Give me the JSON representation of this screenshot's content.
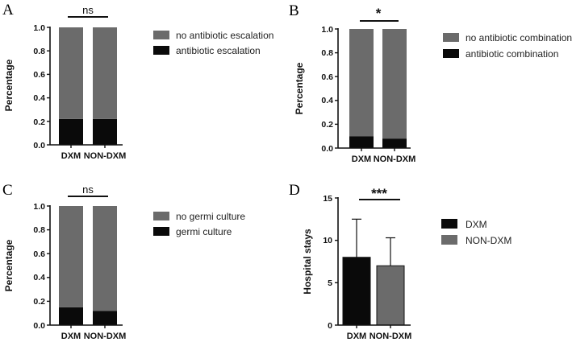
{
  "colors": {
    "dark": "#0a0a0a",
    "gray": "#6b6b6b",
    "axis": "#111111"
  },
  "chart_data": [
    {
      "panel": "A",
      "type": "bar",
      "stacked": true,
      "categories": [
        "DXM",
        "NON-DXM"
      ],
      "series": [
        {
          "name": "antibiotic escalation",
          "values": [
            0.22,
            0.22
          ]
        },
        {
          "name": "no antibiotic escalation",
          "values": [
            0.78,
            0.78
          ]
        }
      ],
      "legend": [
        "no antibiotic escalation",
        "antibiotic escalation"
      ],
      "ylabel": "Percentage",
      "ylim": [
        0,
        1.0
      ],
      "yticks": [
        "0.0",
        "0.2",
        "0.4",
        "0.6",
        "0.8",
        "1.0"
      ],
      "significance": "ns"
    },
    {
      "panel": "B",
      "type": "bar",
      "stacked": true,
      "categories": [
        "DXM",
        "NON-DXM"
      ],
      "series": [
        {
          "name": "antibiotic combination",
          "values": [
            0.1,
            0.08
          ]
        },
        {
          "name": "no antibiotic combination",
          "values": [
            0.9,
            0.92
          ]
        }
      ],
      "legend": [
        "no antibiotic combination",
        "antibiotic combination"
      ],
      "ylabel": "Percentage",
      "ylim": [
        0,
        1.0
      ],
      "yticks": [
        "0.0",
        "0.2",
        "0.4",
        "0.6",
        "0.8",
        "1.0"
      ],
      "significance": "*"
    },
    {
      "panel": "C",
      "type": "bar",
      "stacked": true,
      "categories": [
        "DXM",
        "NON-DXM"
      ],
      "series": [
        {
          "name": "germi culture",
          "values": [
            0.15,
            0.12
          ]
        },
        {
          "name": "no germi culture",
          "values": [
            0.85,
            0.88
          ]
        }
      ],
      "legend": [
        "no germi culture",
        "germi culture"
      ],
      "ylabel": "Percentage",
      "ylim": [
        0,
        1.0
      ],
      "yticks": [
        "0.0",
        "0.2",
        "0.4",
        "0.6",
        "0.8",
        "1.0"
      ],
      "significance": "ns"
    },
    {
      "panel": "D",
      "type": "bar",
      "stacked": false,
      "categories": [
        "DXM",
        "NON-DXM"
      ],
      "values": [
        8,
        7
      ],
      "error_upper": [
        12.5,
        10.3
      ],
      "legend": [
        "DXM",
        "NON-DXM"
      ],
      "ylabel": "Hospital stays",
      "ylim": [
        0,
        15
      ],
      "yticks": [
        "0",
        "5",
        "10",
        "15"
      ],
      "significance": "***"
    }
  ]
}
